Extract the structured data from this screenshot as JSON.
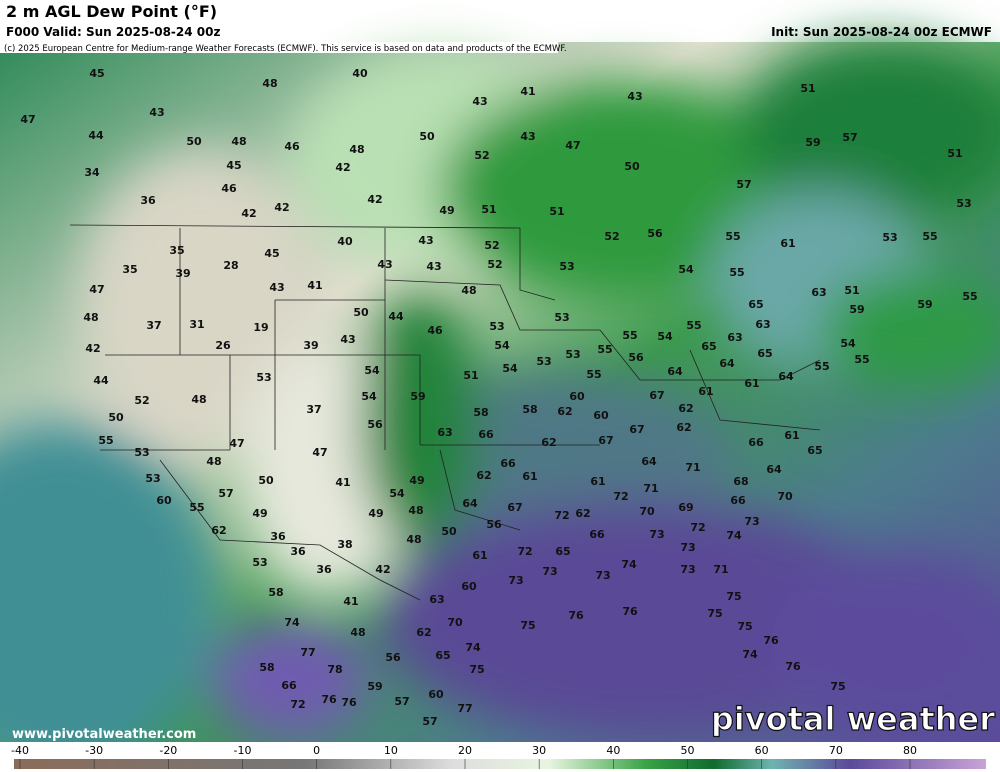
{
  "header": {
    "title": "2 m AGL Dew Point (°F)",
    "valid": "F000 Valid: Sun 2025-08-24 00z",
    "init": "Init: Sun 2025-08-24 00z ECMWF",
    "credit": "(c) 2025 European Centre for Medium-range Weather Forecasts (ECMWF). This service is based on data and products of the ECMWF."
  },
  "map": {
    "values": [
      45,
      48,
      40,
      41,
      43,
      43,
      51,
      47,
      43,
      44,
      50,
      48,
      46,
      50,
      43,
      47,
      57,
      59,
      51,
      34,
      45,
      48,
      52,
      50,
      42,
      46,
      57,
      36,
      42,
      42,
      42,
      49,
      51,
      51,
      53,
      43,
      40,
      52,
      52,
      56,
      55,
      61,
      55,
      53,
      35,
      45,
      28,
      39,
      35,
      43,
      43,
      52,
      53,
      54,
      55,
      47,
      41,
      43,
      48,
      63,
      51,
      55,
      59,
      48,
      37,
      31,
      19,
      50,
      44,
      46,
      53,
      53,
      55,
      55,
      54,
      65,
      63,
      63,
      59,
      42,
      26,
      39,
      43,
      54,
      53,
      53,
      55,
      56,
      65,
      65,
      54,
      55,
      44,
      53,
      54,
      51,
      54,
      55,
      64,
      64,
      61,
      64,
      55,
      48,
      52,
      54,
      59,
      60,
      67,
      61,
      37,
      50,
      56,
      63,
      58,
      58,
      62,
      60,
      62,
      55,
      47,
      66,
      62,
      67,
      67,
      62,
      66,
      61,
      65,
      53,
      47,
      48,
      66,
      71,
      64,
      64,
      53,
      50,
      41,
      49,
      62,
      61,
      61,
      68,
      54,
      60,
      55,
      57,
      64,
      67,
      72,
      71,
      66,
      70,
      49,
      49,
      48,
      69,
      70,
      73,
      72,
      62,
      36,
      50,
      56,
      72,
      62,
      66,
      73,
      48,
      36,
      38,
      61,
      72,
      65,
      73,
      74,
      53,
      36,
      42,
      73,
      73,
      74,
      73,
      71,
      73,
      60,
      58,
      41,
      63,
      75,
      74,
      48,
      62,
      70,
      75,
      76,
      76,
      75,
      75,
      76,
      77,
      56,
      65,
      74,
      74,
      76,
      58,
      78,
      76,
      75,
      66,
      59,
      60,
      75,
      72,
      76,
      57,
      57,
      77
    ]
  },
  "footer": {
    "website": "www.pivotalweather.com",
    "logo": "pivotal weather"
  },
  "colorbar": {
    "ticks": [
      -40,
      -30,
      -20,
      -10,
      0,
      10,
      20,
      30,
      40,
      50,
      60,
      70,
      80
    ]
  }
}
